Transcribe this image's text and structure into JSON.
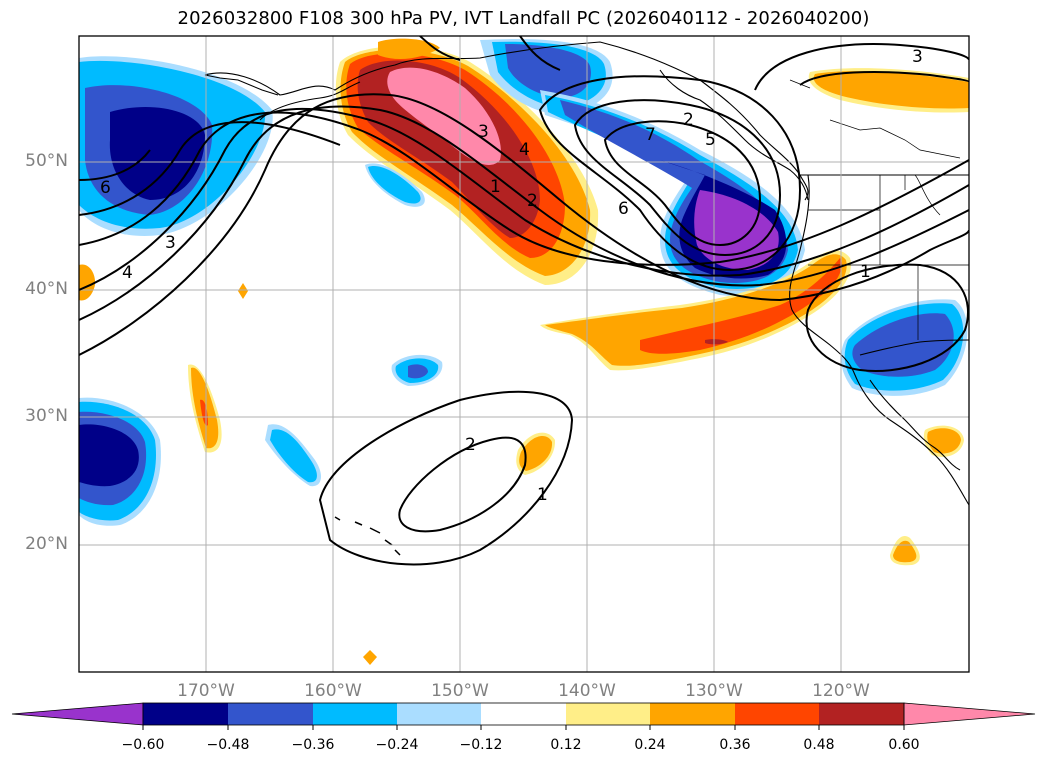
{
  "title": "2026032800 F108 300 hPa PV, IVT Landfall PC (2026040112 - 2026040200)",
  "lat_labels": [
    "50°N",
    "40°N",
    "30°N",
    "20°N"
  ],
  "lon_labels": [
    "170°W",
    "160°W",
    "150°W",
    "140°W",
    "130°W",
    "120°W"
  ],
  "colorbar": {
    "ticks": [
      "−0.60",
      "−0.48",
      "−0.36",
      "−0.24",
      "−0.12",
      "0.12",
      "0.24",
      "0.36",
      "0.48",
      "0.60"
    ],
    "colors": [
      "#9933cc",
      "#000088",
      "#3355cc",
      "#00bbff",
      "#aaddff",
      "#ffffff",
      "#ffee88",
      "#ffa500",
      "#ff4500",
      "#b22222",
      "#ff88aa"
    ]
  },
  "contour_labels": [
    "1",
    "2",
    "3",
    "4",
    "5",
    "6",
    "7",
    "1",
    "2",
    "3",
    "4",
    "6",
    "1",
    "2",
    "3"
  ]
}
